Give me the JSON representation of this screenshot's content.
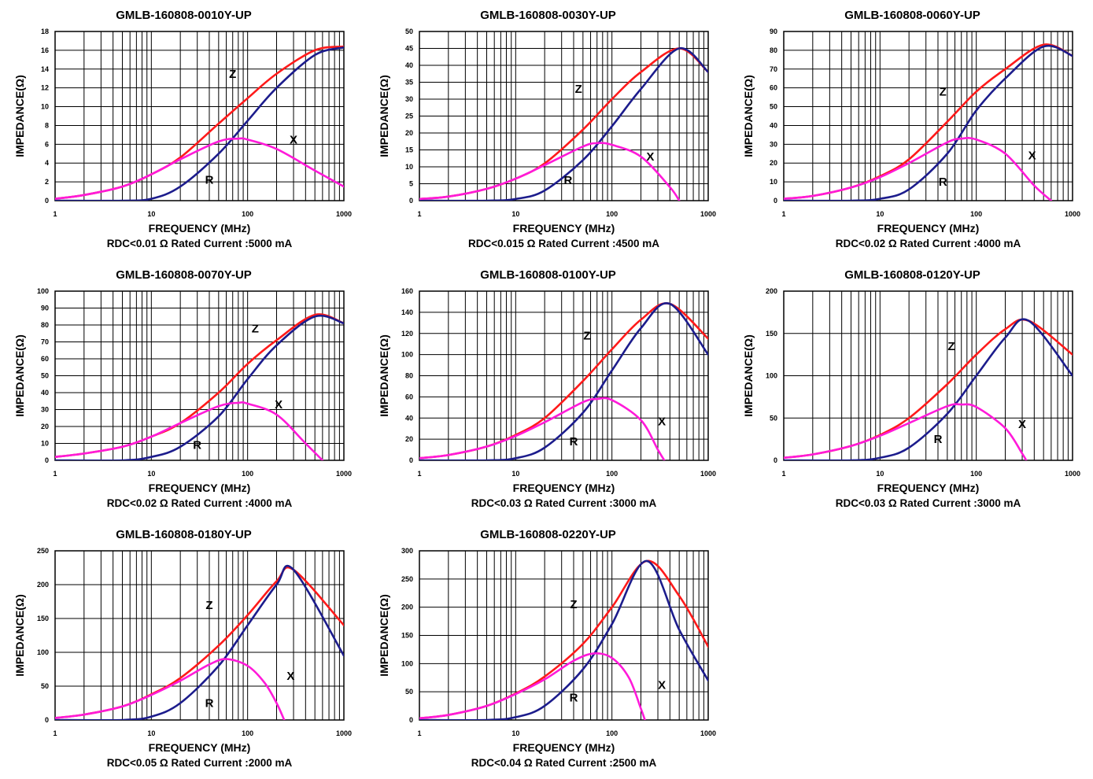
{
  "colors": {
    "Z": "#ff1a1a",
    "R": "#1c1c8c",
    "X": "#ff1ad9"
  },
  "chart_data": [
    {
      "type": "line",
      "title": "GMLB-160808-0010Y-UP",
      "xlabel": "FREQUENCY (MHz)",
      "ylabel": "IMPEDANCE(Ω)",
      "xscale": "log",
      "xlim": [
        1,
        1000
      ],
      "ylim": [
        0,
        18
      ],
      "x_ticks": [
        "1",
        "10",
        "100",
        "1000"
      ],
      "y_ticks": [
        "0",
        "2",
        "4",
        "6",
        "8",
        "10",
        "12",
        "14",
        "16",
        "18"
      ],
      "caption": "RDC<0.01 Ω Rated Current :5000 mA",
      "series": [
        {
          "name": "Z",
          "x": [
            1,
            2,
            5,
            10,
            20,
            50,
            100,
            200,
            500,
            1000
          ],
          "values": [
            0.2,
            0.6,
            1.5,
            2.8,
            4.6,
            8.2,
            10.9,
            13.5,
            16.0,
            16.4
          ]
        },
        {
          "name": "R",
          "x": [
            1,
            5,
            10,
            20,
            50,
            100,
            200,
            500,
            1000
          ],
          "values": [
            0,
            0,
            0.2,
            1.5,
            5.0,
            8.5,
            12.0,
            15.5,
            16.3
          ]
        },
        {
          "name": "X",
          "x": [
            1,
            2,
            5,
            10,
            20,
            50,
            80,
            100,
            200,
            500,
            1000
          ],
          "values": [
            0.2,
            0.6,
            1.5,
            2.8,
            4.4,
            6.3,
            6.6,
            6.5,
            5.5,
            3.2,
            1.5
          ]
        }
      ],
      "annotations": [
        {
          "text": "Z",
          "x": 70,
          "y": 13.5
        },
        {
          "text": "X",
          "x": 300,
          "y": 6.5
        },
        {
          "text": "R",
          "x": 40,
          "y": 2.2
        }
      ]
    },
    {
      "type": "line",
      "title": "GMLB-160808-0030Y-UP",
      "xlabel": "FREQUENCY (MHz)",
      "ylabel": "IMPEDANCE(Ω)",
      "xscale": "log",
      "xlim": [
        1,
        1000
      ],
      "ylim": [
        0,
        50
      ],
      "x_ticks": [
        "1",
        "10",
        "100",
        "1000"
      ],
      "y_ticks": [
        "0",
        "5",
        "10",
        "15",
        "20",
        "25",
        "30",
        "35",
        "40",
        "45",
        "50"
      ],
      "caption": "RDC<0.015 Ω Rated Current :4500 mA",
      "series": [
        {
          "name": "Z",
          "x": [
            1,
            2,
            5,
            10,
            20,
            50,
            100,
            200,
            500,
            1000
          ],
          "values": [
            0.5,
            1.2,
            3.5,
            6.5,
            11.0,
            21.0,
            30.0,
            38.0,
            45.0,
            38.0
          ]
        },
        {
          "name": "R",
          "x": [
            1,
            5,
            10,
            20,
            50,
            100,
            200,
            500,
            1000
          ],
          "values": [
            0,
            0,
            0.5,
            3.0,
            12.0,
            22.0,
            33.0,
            45.0,
            38.0
          ]
        },
        {
          "name": "X",
          "x": [
            1,
            2,
            5,
            10,
            20,
            50,
            70,
            100,
            200,
            400,
            500
          ],
          "values": [
            0.5,
            1.2,
            3.5,
            6.5,
            10.5,
            16.0,
            17.0,
            16.5,
            13.0,
            4.0,
            0
          ]
        }
      ],
      "annotations": [
        {
          "text": "Z",
          "x": 45,
          "y": 33
        },
        {
          "text": "X",
          "x": 250,
          "y": 13
        },
        {
          "text": "R",
          "x": 35,
          "y": 6
        }
      ]
    },
    {
      "type": "line",
      "title": "GMLB-160808-0060Y-UP",
      "xlabel": "FREQUENCY (MHz)",
      "ylabel": "IMPEDANCE(Ω)",
      "xscale": "log",
      "xlim": [
        1,
        1000
      ],
      "ylim": [
        0,
        90
      ],
      "x_ticks": [
        "1",
        "10",
        "100",
        "1000"
      ],
      "y_ticks": [
        "0",
        "10",
        "20",
        "30",
        "40",
        "50",
        "60",
        "70",
        "80",
        "90"
      ],
      "caption": "RDC<0.02 Ω Rated Current :4000 mA",
      "series": [
        {
          "name": "Z",
          "x": [
            1,
            2,
            5,
            10,
            20,
            50,
            100,
            200,
            500,
            1000
          ],
          "values": [
            1,
            2.5,
            7,
            13,
            22,
            42,
            58,
            70,
            83,
            77
          ]
        },
        {
          "name": "R",
          "x": [
            1,
            5,
            10,
            20,
            50,
            100,
            200,
            500,
            1000
          ],
          "values": [
            0,
            0,
            1,
            6,
            25,
            48,
            65,
            82,
            77
          ]
        },
        {
          "name": "X",
          "x": [
            1,
            2,
            5,
            10,
            20,
            50,
            70,
            100,
            200,
            400,
            600
          ],
          "values": [
            1,
            2.5,
            7,
            12.5,
            20,
            31,
            33,
            32.5,
            25,
            8,
            0
          ]
        }
      ],
      "annotations": [
        {
          "text": "Z",
          "x": 45,
          "y": 58
        },
        {
          "text": "X",
          "x": 380,
          "y": 24
        },
        {
          "text": "R",
          "x": 45,
          "y": 10
        }
      ]
    },
    {
      "type": "line",
      "title": "GMLB-160808-0070Y-UP",
      "xlabel": "FREQUENCY (MHz)",
      "ylabel": "IMPEDANCE(Ω)",
      "xscale": "log",
      "xlim": [
        1,
        1000
      ],
      "ylim": [
        0,
        100
      ],
      "x_ticks": [
        "1",
        "10",
        "100",
        "1000"
      ],
      "y_ticks": [
        "0",
        "10",
        "20",
        "30",
        "40",
        "50",
        "60",
        "70",
        "80",
        "90",
        "100"
      ],
      "caption": "RDC<0.02 Ω Rated Current :4000 mA",
      "series": [
        {
          "name": "Z",
          "x": [
            1,
            2,
            5,
            10,
            20,
            50,
            100,
            200,
            500,
            1000
          ],
          "values": [
            2,
            4,
            8,
            14,
            22,
            40,
            57,
            71,
            86,
            81
          ]
        },
        {
          "name": "R",
          "x": [
            1,
            5,
            10,
            20,
            50,
            100,
            200,
            500,
            1000
          ],
          "values": [
            0,
            0,
            2,
            8,
            26,
            48,
            68,
            85,
            81
          ]
        },
        {
          "name": "X",
          "x": [
            1,
            2,
            5,
            10,
            20,
            50,
            80,
            100,
            200,
            400,
            600
          ],
          "values": [
            2,
            4,
            8,
            14,
            22,
            32,
            34,
            33.5,
            27,
            10,
            0
          ]
        }
      ],
      "annotations": [
        {
          "text": "Z",
          "x": 120,
          "y": 78
        },
        {
          "text": "X",
          "x": 210,
          "y": 33
        },
        {
          "text": "R",
          "x": 30,
          "y": 9
        }
      ]
    },
    {
      "type": "line",
      "title": "GMLB-160808-0100Y-UP",
      "xlabel": "FREQUENCY (MHz)",
      "ylabel": "IMPEDANCE(Ω)",
      "xscale": "log",
      "xlim": [
        1,
        1000
      ],
      "ylim": [
        0,
        160
      ],
      "x_ticks": [
        "1",
        "10",
        "100",
        "1000"
      ],
      "y_ticks": [
        "0",
        "20",
        "40",
        "60",
        "80",
        "100",
        "120",
        "140",
        "160"
      ],
      "caption": "RDC<0.03 Ω Rated Current :3000 mA",
      "series": [
        {
          "name": "Z",
          "x": [
            1,
            2,
            5,
            10,
            20,
            50,
            100,
            200,
            400,
            1000
          ],
          "values": [
            2,
            5,
            13,
            24,
            40,
            75,
            105,
            133,
            148,
            115
          ]
        },
        {
          "name": "R",
          "x": [
            1,
            5,
            10,
            20,
            50,
            100,
            200,
            400,
            1000
          ],
          "values": [
            0,
            0,
            2,
            12,
            45,
            85,
            125,
            148,
            100
          ]
        },
        {
          "name": "X",
          "x": [
            1,
            2,
            5,
            10,
            20,
            50,
            70,
            100,
            200,
            300,
            350
          ],
          "values": [
            2,
            5,
            13,
            23,
            36,
            55,
            58,
            57,
            38,
            10,
            0
          ]
        }
      ],
      "annotations": [
        {
          "text": "Z",
          "x": 55,
          "y": 118
        },
        {
          "text": "X",
          "x": 330,
          "y": 37
        },
        {
          "text": "R",
          "x": 40,
          "y": 18
        }
      ]
    },
    {
      "type": "line",
      "title": "GMLB-160808-0120Y-UP",
      "xlabel": "FREQUENCY (MHz)",
      "ylabel": "IMPEDANCE(Ω)",
      "xscale": "log",
      "xlim": [
        1,
        1000
      ],
      "ylim": [
        0,
        200
      ],
      "x_ticks": [
        "1",
        "10",
        "100",
        "1000"
      ],
      "y_ticks": [
        "0",
        "50",
        "100",
        "150",
        "200"
      ],
      "caption": "RDC<0.03 Ω Rated Current :3000 mA",
      "series": [
        {
          "name": "Z",
          "x": [
            1,
            2,
            5,
            10,
            20,
            50,
            100,
            200,
            350,
            1000
          ],
          "values": [
            3,
            7,
            17,
            30,
            50,
            90,
            125,
            155,
            165,
            125
          ]
        },
        {
          "name": "R",
          "x": [
            1,
            5,
            10,
            20,
            50,
            100,
            200,
            350,
            1000
          ],
          "values": [
            0,
            0,
            3,
            15,
            55,
            100,
            145,
            165,
            100
          ]
        },
        {
          "name": "X",
          "x": [
            1,
            2,
            5,
            10,
            20,
            50,
            70,
            100,
            200,
            300,
            330
          ],
          "values": [
            3,
            7,
            17,
            29,
            44,
            64,
            66,
            63,
            38,
            8,
            0
          ]
        }
      ],
      "annotations": [
        {
          "text": "Z",
          "x": 55,
          "y": 135
        },
        {
          "text": "X",
          "x": 300,
          "y": 43
        },
        {
          "text": "R",
          "x": 40,
          "y": 25
        }
      ]
    },
    {
      "type": "line",
      "title": "GMLB-160808-0180Y-UP",
      "xlabel": "FREQUENCY (MHz)",
      "ylabel": "IMPEDANCE(Ω)",
      "xscale": "log",
      "xlim": [
        1,
        1000
      ],
      "ylim": [
        0,
        250
      ],
      "x_ticks": [
        "1",
        "10",
        "100",
        "1000"
      ],
      "y_ticks": [
        "0",
        "50",
        "100",
        "150",
        "200",
        "250"
      ],
      "caption": "RDC<0.05 Ω Rated Current :2000 mA",
      "series": [
        {
          "name": "Z",
          "x": [
            1,
            2,
            5,
            10,
            20,
            50,
            100,
            200,
            300,
            1000
          ],
          "values": [
            3,
            8,
            20,
            38,
            62,
            110,
            155,
            205,
            222,
            140
          ]
        },
        {
          "name": "R",
          "x": [
            1,
            5,
            10,
            20,
            50,
            100,
            200,
            300,
            1000
          ],
          "values": [
            0,
            0,
            5,
            25,
            80,
            140,
            200,
            222,
            95
          ]
        },
        {
          "name": "X",
          "x": [
            1,
            2,
            5,
            10,
            20,
            40,
            60,
            100,
            150,
            200,
            240
          ],
          "values": [
            3,
            8,
            20,
            37,
            58,
            82,
            90,
            80,
            55,
            25,
            0
          ]
        }
      ],
      "annotations": [
        {
          "text": "Z",
          "x": 40,
          "y": 170
        },
        {
          "text": "X",
          "x": 280,
          "y": 65
        },
        {
          "text": "R",
          "x": 40,
          "y": 25
        }
      ]
    },
    {
      "type": "line",
      "title": "GMLB-160808-0220Y-UP",
      "xlabel": "FREQUENCY (MHz)",
      "ylabel": "IMPEDANCE(Ω)",
      "xscale": "log",
      "xlim": [
        1,
        1000
      ],
      "ylim": [
        0,
        300
      ],
      "x_ticks": [
        "1",
        "10",
        "100",
        "1000"
      ],
      "y_ticks": [
        "0",
        "50",
        "100",
        "150",
        "200",
        "250",
        "300"
      ],
      "caption": "RDC<0.04 Ω Rated Current :2500 mA",
      "series": [
        {
          "name": "Z",
          "x": [
            1,
            2,
            5,
            10,
            20,
            50,
            100,
            230,
            500,
            1000
          ],
          "values": [
            3,
            9,
            25,
            47,
            77,
            135,
            200,
            282,
            220,
            130
          ]
        },
        {
          "name": "R",
          "x": [
            1,
            5,
            10,
            20,
            50,
            100,
            230,
            500,
            1000
          ],
          "values": [
            0,
            0,
            5,
            25,
            90,
            170,
            282,
            160,
            70
          ]
        },
        {
          "name": "X",
          "x": [
            1,
            2,
            5,
            10,
            20,
            40,
            65,
            100,
            150,
            200,
            220
          ],
          "values": [
            3,
            9,
            25,
            46,
            72,
            105,
            118,
            110,
            75,
            20,
            0
          ]
        }
      ],
      "annotations": [
        {
          "text": "Z",
          "x": 40,
          "y": 205
        },
        {
          "text": "X",
          "x": 330,
          "y": 62
        },
        {
          "text": "R",
          "x": 40,
          "y": 40
        }
      ]
    }
  ]
}
